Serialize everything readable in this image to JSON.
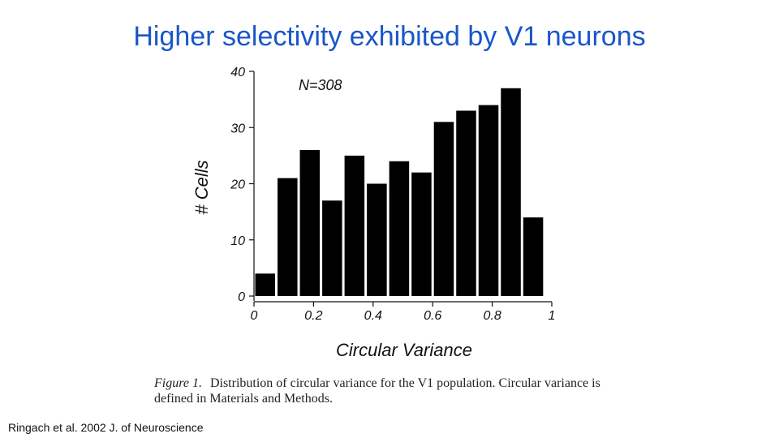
{
  "slide": {
    "title": "Higher selectivity exhibited by V1 neurons",
    "citation": "Ringach et al. 2002 J. of Neuroscience"
  },
  "caption": {
    "label": "Figure 1.",
    "text": "Distribution of circular variance for the V1 population. Circular variance is defined in Materials and Methods."
  },
  "colors": {
    "title": "#1a56c8",
    "bars": "#000000"
  },
  "chart_data": {
    "type": "bar",
    "title": "",
    "annotation": "N=308",
    "xlabel": "Circular Variance",
    "ylabel": "# Cells",
    "bin_width": 0.075,
    "bin_starts": [
      0.0,
      0.075,
      0.15,
      0.225,
      0.3,
      0.375,
      0.45,
      0.525,
      0.6,
      0.675,
      0.75,
      0.825,
      0.9
    ],
    "values": [
      4,
      21,
      26,
      17,
      25,
      20,
      24,
      22,
      31,
      33,
      34,
      37,
      14
    ],
    "xlim": [
      0,
      1
    ],
    "ylim": [
      0,
      40
    ],
    "x_ticks": [
      0,
      0.2,
      0.4,
      0.6,
      0.8,
      1
    ],
    "x_tick_labels": [
      "0",
      "0.2",
      "0.4",
      "0.6",
      "0.8",
      "1"
    ],
    "y_ticks": [
      0,
      10,
      20,
      30,
      40
    ],
    "y_tick_labels": [
      "0",
      "10",
      "20",
      "30",
      "40"
    ],
    "grid": false,
    "legend": "none"
  }
}
